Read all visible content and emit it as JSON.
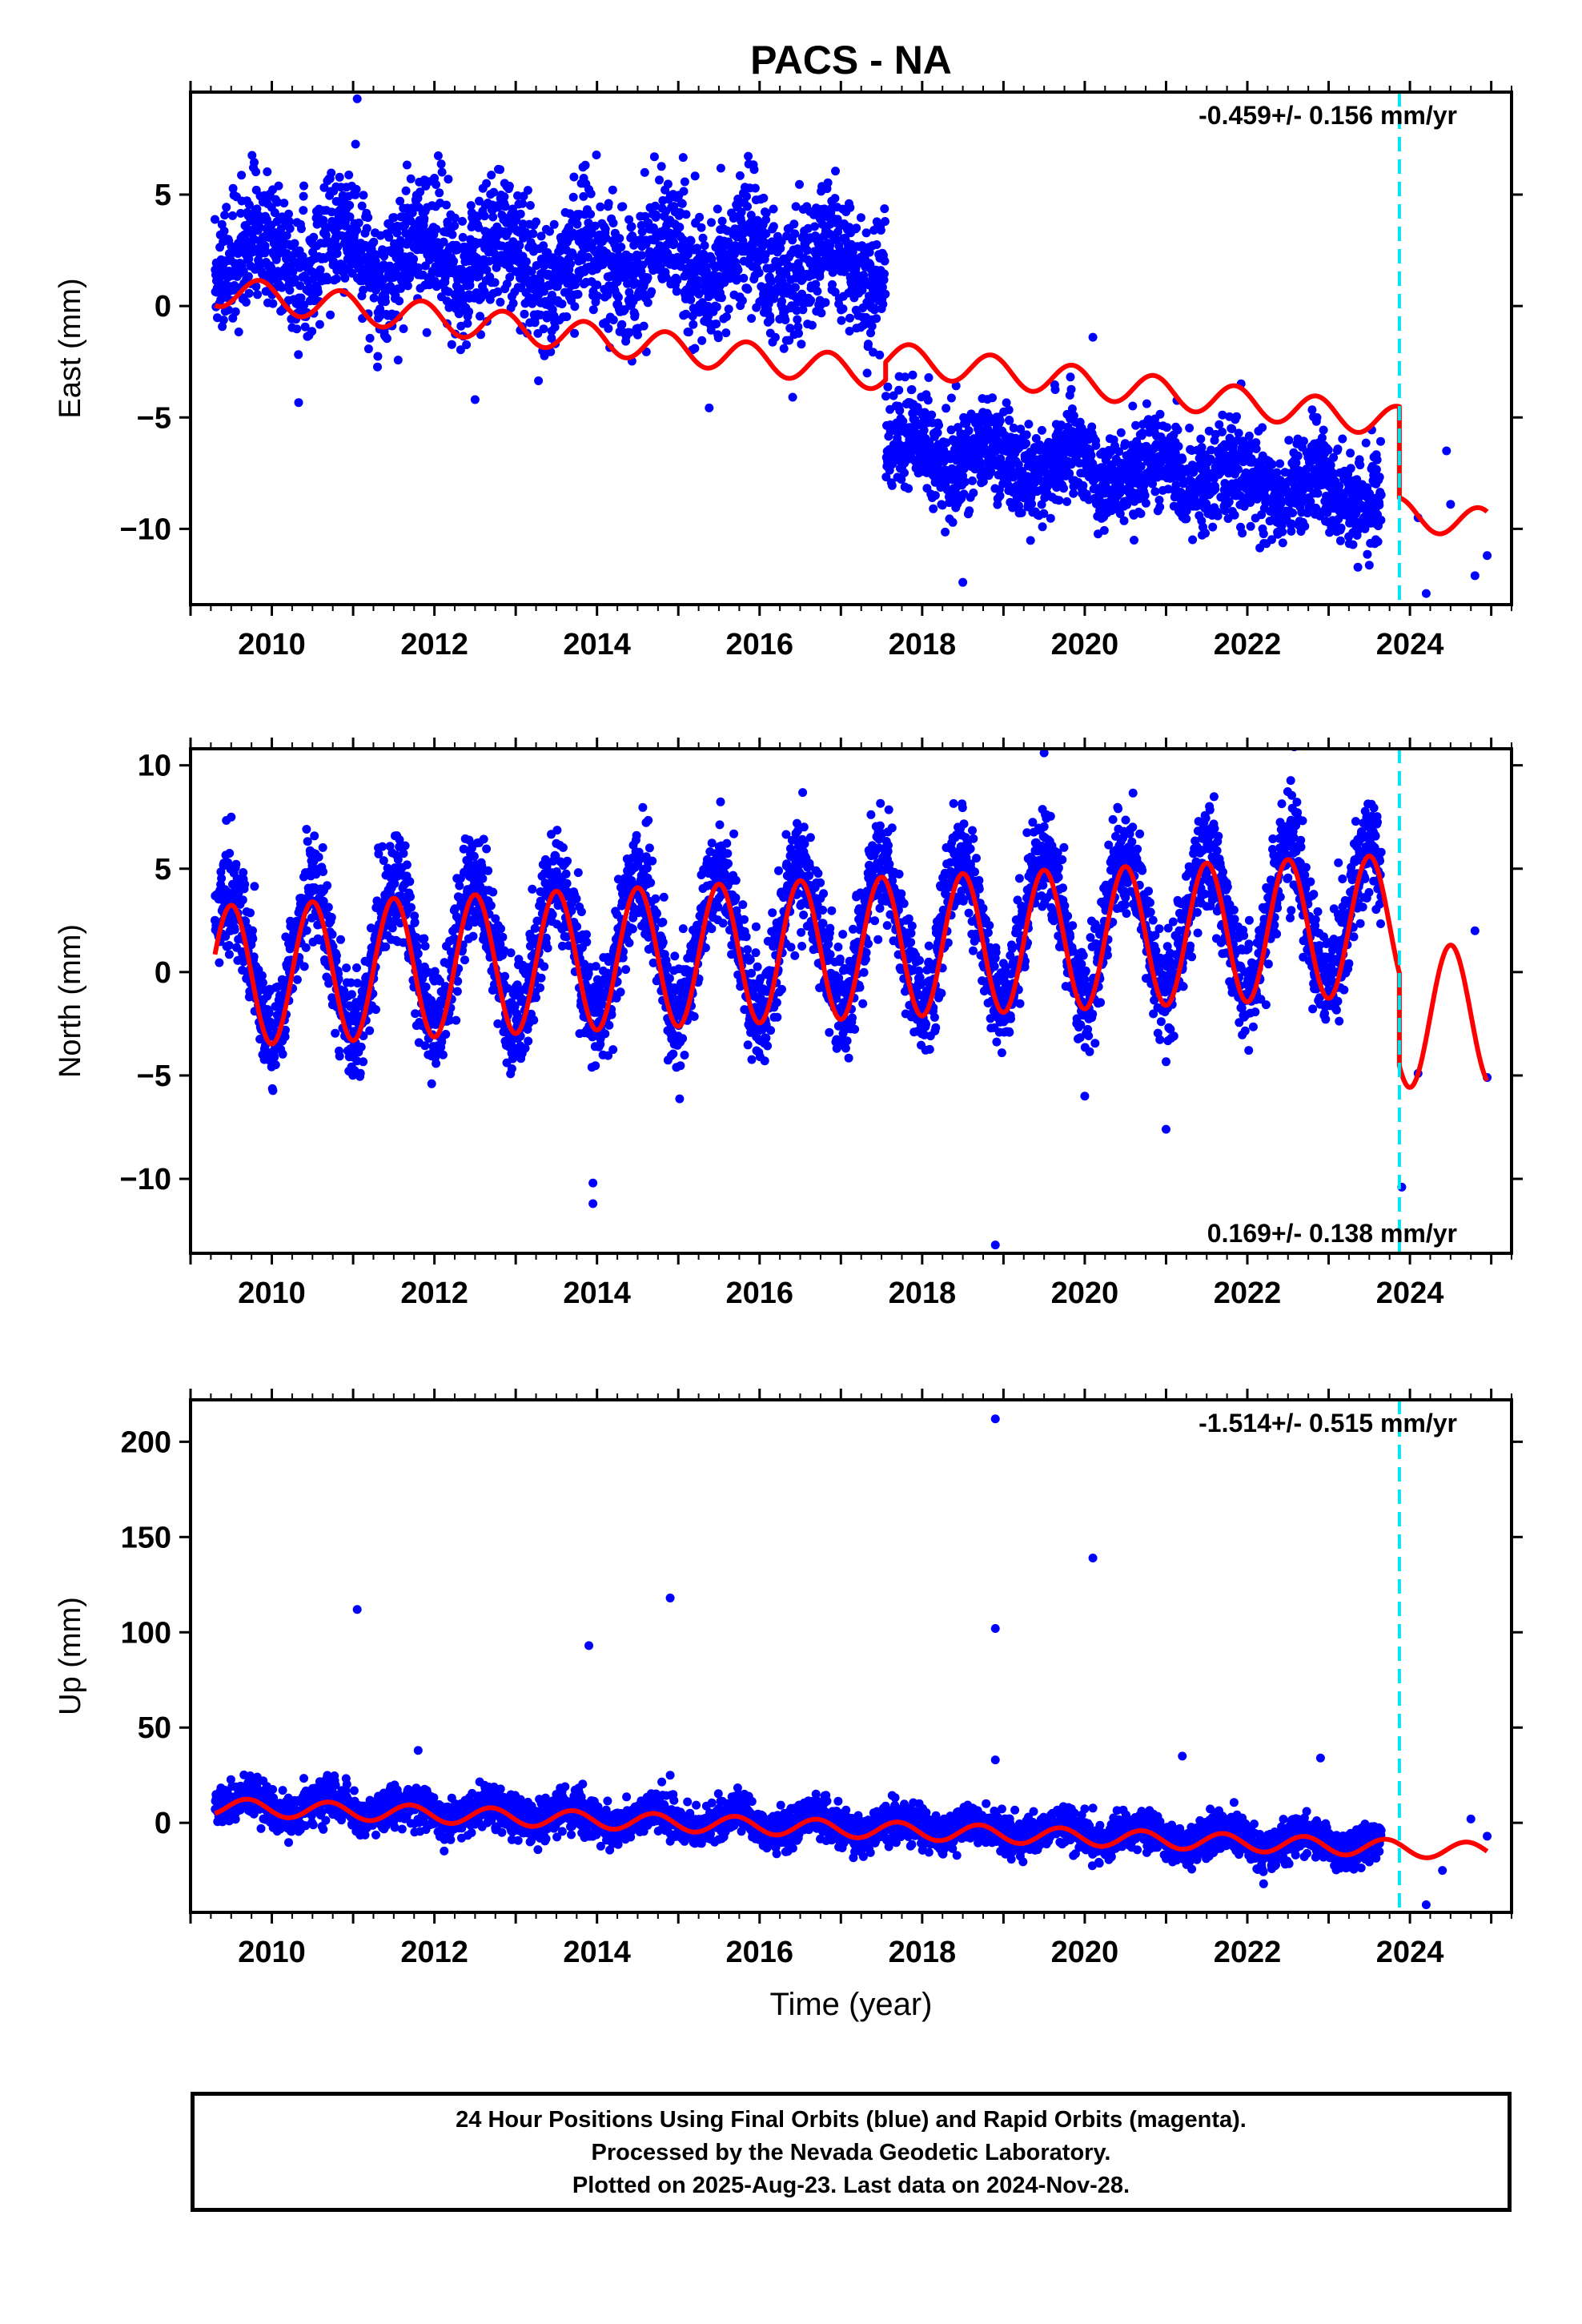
{
  "colors": {
    "data": "#0000ff",
    "model": "#ff0000",
    "event": "#00e5ee",
    "axis": "#000000"
  },
  "chart_data": [
    {
      "type": "scatter",
      "panel": "east",
      "title": "PACS - NA",
      "ylabel": "East (mm)",
      "xlabel": "",
      "xlim": [
        2009.0,
        2025.25
      ],
      "ylim": [
        -13.4,
        9.6
      ],
      "xticks": [
        2010,
        2012,
        2014,
        2016,
        2018,
        2020,
        2022,
        2024
      ],
      "yticks": [
        -10,
        -5,
        0,
        5
      ],
      "ytick_labels": [
        "−10",
        "−5",
        "0",
        "5"
      ],
      "rate_label": "-0.459+/- 0.156 mm/yr",
      "rate_position": "top-right",
      "event_line_x": 2023.87,
      "data_range": [
        2009.3,
        2023.65
      ],
      "model_range": [
        2009.3,
        2024.95
      ],
      "series": [
        {
          "segments": [
            {
              "from": 2009.3,
              "to": 2017.55,
              "offset": 2.3,
              "trend": -0.05,
              "annual": 1.0,
              "phase": 0.6,
              "noise": 1.4
            },
            {
              "from": 2017.55,
              "to": 2023.65,
              "offset": -6.3,
              "trend": -0.35,
              "annual": 0.7,
              "phase": 0.6,
              "noise": 1.1
            }
          ]
        },
        {
          "model": [
            {
              "from": 2009.3,
              "to": 2017.55,
              "offset": 0.7,
              "trend": -0.46,
              "annual": 0.7,
              "phase": 0.6
            },
            {
              "from": 2017.55,
              "to": 2023.87,
              "offset": -2.3,
              "trend": -0.46,
              "annual": 0.7,
              "phase": 0.6
            },
            {
              "from": 2023.87,
              "to": 2024.95,
              "offset": -9.3,
              "trend": -0.46,
              "annual": 0.7,
              "phase": 0.6
            }
          ]
        }
      ],
      "extra_points": [
        {
          "x": 2011.05,
          "y": 9.3
        },
        {
          "x": 2012.5,
          "y": -4.2
        },
        {
          "x": 2018.5,
          "y": -12.4
        },
        {
          "x": 2020.1,
          "y": -1.4
        },
        {
          "x": 2024.1,
          "y": -9.5
        },
        {
          "x": 2024.2,
          "y": -12.9
        },
        {
          "x": 2024.45,
          "y": -6.5
        },
        {
          "x": 2024.5,
          "y": -8.9
        },
        {
          "x": 2024.8,
          "y": -12.1
        },
        {
          "x": 2024.95,
          "y": -11.2
        }
      ]
    },
    {
      "type": "scatter",
      "panel": "north",
      "ylabel": "North (mm)",
      "xlabel": "",
      "xlim": [
        2009.0,
        2025.25
      ],
      "ylim": [
        -13.6,
        10.8
      ],
      "xticks": [
        2010,
        2012,
        2014,
        2016,
        2018,
        2020,
        2022,
        2024
      ],
      "yticks": [
        -10,
        -5,
        0,
        5,
        10
      ],
      "ytick_labels": [
        "−10",
        "−5",
        "0",
        "5",
        "10"
      ],
      "rate_label": "0.169+/- 0.138 mm/yr",
      "rate_position": "bottom-right",
      "event_line_x": 2023.87,
      "data_range": [
        2009.3,
        2023.65
      ],
      "model_range": [
        2009.3,
        2024.95
      ],
      "series": [
        {
          "segments": [
            {
              "from": 2009.3,
              "to": 2023.65,
              "offset": 0.4,
              "trend": 0.17,
              "annual": 3.4,
              "phase": 0.25,
              "noise": 1.3
            }
          ]
        },
        {
          "model": [
            {
              "from": 2009.3,
              "to": 2023.87,
              "offset": -0.2,
              "trend": 0.17,
              "annual": 3.4,
              "phase": 0.25
            },
            {
              "from": 2023.87,
              "to": 2024.95,
              "offset": -2.2,
              "trend": 0.17,
              "annual": 3.4,
              "phase": 0.25
            }
          ]
        }
      ],
      "extra_points": [
        {
          "x": 2013.95,
          "y": -10.2
        },
        {
          "x": 2013.95,
          "y": -11.2
        },
        {
          "x": 2018.9,
          "y": -13.2
        },
        {
          "x": 2019.5,
          "y": 10.6
        },
        {
          "x": 2020.0,
          "y": -6.0
        },
        {
          "x": 2021.0,
          "y": -7.6
        },
        {
          "x": 2023.9,
          "y": -10.4
        },
        {
          "x": 2024.1,
          "y": -4.9
        },
        {
          "x": 2024.8,
          "y": 2.0
        },
        {
          "x": 2024.95,
          "y": -5.1
        }
      ]
    },
    {
      "type": "scatter",
      "panel": "up",
      "ylabel": "Up (mm)",
      "xlabel": "Time (year)",
      "xlim": [
        2009.0,
        2025.25
      ],
      "ylim": [
        -47,
        222
      ],
      "xticks": [
        2010,
        2012,
        2014,
        2016,
        2018,
        2020,
        2022,
        2024
      ],
      "yticks": [
        0,
        50,
        100,
        150,
        200
      ],
      "ytick_labels": [
        "0",
        "50",
        "100",
        "150",
        "200"
      ],
      "rate_label": "-1.514+/- 0.515 mm/yr",
      "rate_position": "top-right",
      "event_line_x": 2023.87,
      "data_range": [
        2009.3,
        2023.65
      ],
      "model_range": [
        2009.3,
        2024.95
      ],
      "series": [
        {
          "segments": [
            {
              "from": 2009.3,
              "to": 2023.65,
              "offset": 10.0,
              "trend": -1.5,
              "annual": 4.5,
              "phase": 0.45,
              "noise": 5.0
            }
          ]
        },
        {
          "model": [
            {
              "from": 2009.3,
              "to": 2024.95,
              "offset": 8.5,
              "trend": -1.5,
              "annual": 4.5,
              "phase": 0.45
            }
          ]
        }
      ],
      "extra_points": [
        {
          "x": 2011.05,
          "y": 112
        },
        {
          "x": 2011.8,
          "y": 38
        },
        {
          "x": 2013.9,
          "y": 93
        },
        {
          "x": 2014.9,
          "y": 118
        },
        {
          "x": 2014.9,
          "y": 25
        },
        {
          "x": 2018.9,
          "y": 212
        },
        {
          "x": 2018.9,
          "y": 102
        },
        {
          "x": 2018.9,
          "y": 33
        },
        {
          "x": 2020.1,
          "y": 139
        },
        {
          "x": 2021.2,
          "y": 35
        },
        {
          "x": 2022.9,
          "y": 34
        },
        {
          "x": 2022.2,
          "y": -32
        },
        {
          "x": 2024.2,
          "y": -43
        },
        {
          "x": 2024.4,
          "y": -25
        },
        {
          "x": 2024.75,
          "y": 2
        },
        {
          "x": 2024.95,
          "y": -7
        }
      ]
    }
  ],
  "footer": {
    "line1": "24 Hour Positions Using Final Orbits (blue) and Rapid Orbits (magenta).",
    "line2": "Processed by the Nevada Geodetic Laboratory.",
    "line3": "Plotted on 2025-Aug-23. Last data on 2024-Nov-28."
  }
}
